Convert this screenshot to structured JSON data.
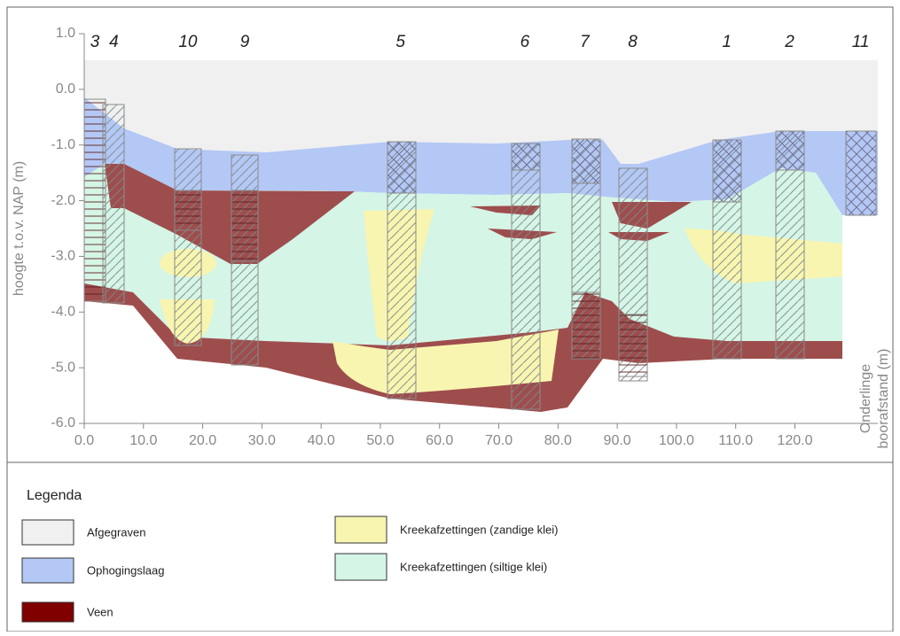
{
  "chart_data": {
    "type": "cross-section",
    "y_label": "hoogte t.o.v. NAP (m)",
    "x_label": [
      "Onderlinge",
      "boorafstand (m)"
    ],
    "xlim": [
      0,
      134
    ],
    "ylim": [
      -6,
      1
    ],
    "xticks": [
      {
        "value": 0,
        "label": "0.0"
      },
      {
        "value": 10,
        "label": "10.0"
      },
      {
        "value": 20,
        "label": "20.0"
      },
      {
        "value": 30,
        "label": "30.0"
      },
      {
        "value": 40,
        "label": "40.0"
      },
      {
        "value": 50,
        "label": "50.0"
      },
      {
        "value": 60,
        "label": "60.0"
      },
      {
        "value": 70,
        "label": "70.0"
      },
      {
        "value": 80,
        "label": "80.0"
      },
      {
        "value": 90,
        "label": "90.0"
      },
      {
        "value": 100,
        "label": "100.0"
      },
      {
        "value": 110,
        "label": "110.0"
      },
      {
        "value": 120,
        "label": "120.0"
      }
    ],
    "yticks": [
      {
        "value": 1,
        "label": "1.0"
      },
      {
        "value": 0,
        "label": "0.0"
      },
      {
        "value": -1,
        "label": "-1.0"
      },
      {
        "value": -2,
        "label": "-2.0"
      },
      {
        "value": -3,
        "label": "-3.0"
      },
      {
        "value": -4,
        "label": "-4.0"
      },
      {
        "value": -5,
        "label": "-5.0"
      },
      {
        "value": -6,
        "label": "-6.0"
      }
    ],
    "boreholes": [
      {
        "name": "3",
        "x": 1.8
      },
      {
        "name": "4",
        "x": 5.0
      },
      {
        "name": "10",
        "x": 17.5
      },
      {
        "name": "9",
        "x": 27.1
      },
      {
        "name": "5",
        "x": 53.4
      },
      {
        "name": "6",
        "x": 74.4
      },
      {
        "name": "7",
        "x": 84.5
      },
      {
        "name": "8",
        "x": 92.6
      },
      {
        "name": "1",
        "x": 108.5
      },
      {
        "name": "2",
        "x": 119.1
      },
      {
        "name": "11",
        "x": 131.1
      }
    ],
    "legend_title": "Legenda",
    "layers": [
      {
        "name": "Afgegraven",
        "color": "#f0f0f0"
      },
      {
        "name": "Ophogingslaag",
        "color": "#b4c8f5"
      },
      {
        "name": "Veen",
        "color": "#9e4d4d"
      },
      {
        "name": "Kreekafzettingen (zandige klei)",
        "color": "#f8f5b0"
      },
      {
        "name": "Kreekafzettingen (siltige klei)",
        "color": "#d5f5e6"
      }
    ]
  }
}
